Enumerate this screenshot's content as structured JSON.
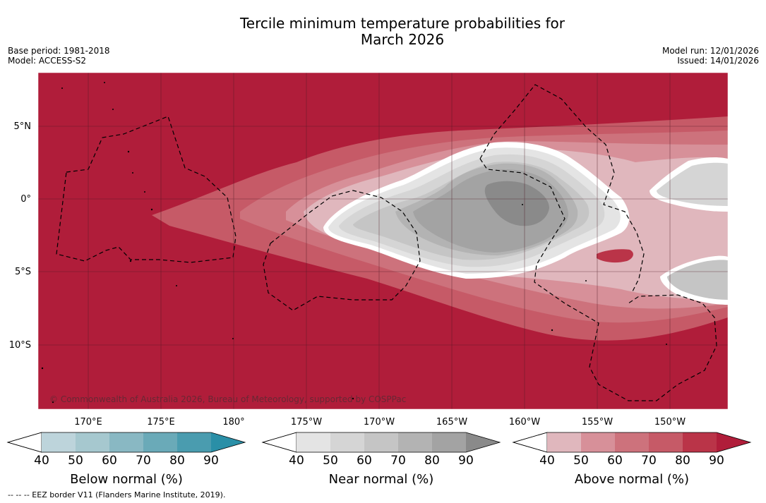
{
  "title": {
    "line1": "Tercile minimum temperature probabilities for",
    "line2": "March 2026"
  },
  "meta": {
    "base_period": "Base period: 1981-2018",
    "model": "Model: ACCESS-S2",
    "model_run": "Model run: 12/01/2026",
    "issued": "Issued: 14/01/2026"
  },
  "map": {
    "lat_labels": [
      "5°N",
      "0°",
      "5°S",
      "10°S"
    ],
    "lon_labels": [
      "170°E",
      "175°E",
      "180°",
      "175°W",
      "170°W",
      "165°W",
      "160°W",
      "155°W",
      "150°W"
    ],
    "copyright": "© Commonwealth of Australia 2026, Bureau of Meteorology, supported by COSPPac"
  },
  "legends": {
    "below": {
      "title": "Below normal (%)",
      "ticks": [
        "40",
        "50",
        "60",
        "70",
        "80",
        "90"
      ],
      "colors": [
        "#bdd4db",
        "#a6c8cf",
        "#89b8c3",
        "#6aaab8",
        "#4a9caf",
        "#2a8fa7"
      ]
    },
    "near": {
      "title": "Near normal (%)",
      "ticks": [
        "40",
        "50",
        "60",
        "70",
        "80",
        "90"
      ],
      "colors": [
        "#e4e4e4",
        "#d5d5d5",
        "#c5c5c5",
        "#b3b3b3",
        "#a3a3a3",
        "#8a8a8a"
      ]
    },
    "above": {
      "title": "Above normal (%)",
      "ticks": [
        "40",
        "50",
        "60",
        "70",
        "80",
        "90"
      ],
      "colors": [
        "#e0b7bd",
        "#d79099",
        "#cd727c",
        "#c65a67",
        "#ba3448",
        "#b01d3a"
      ]
    }
  },
  "footnote": "--  --  -- EEZ border V11 (Flanders Marine Institute, 2019)."
}
